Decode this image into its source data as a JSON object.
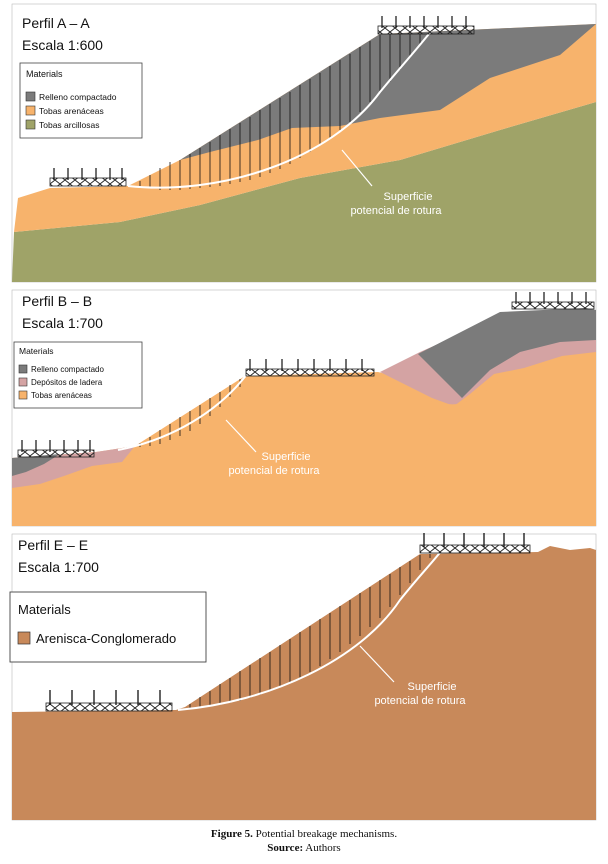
{
  "profiles": [
    {
      "title": "Perfil A – A",
      "scale": "Escala 1:600",
      "legend_title": "Materials",
      "materials": [
        {
          "name": "Relleno compactado",
          "color": "#7b7b7b"
        },
        {
          "name": "Tobas arenáceas",
          "color": "#f7b36c"
        },
        {
          "name": "Tobas arcillosas",
          "color": "#9fa368"
        }
      ],
      "surface_label_1": "Superficie",
      "surface_label_2": "potencial de rotura"
    },
    {
      "title": "Perfil B – B",
      "scale": "Escala 1:700",
      "legend_title": "Materials",
      "materials": [
        {
          "name": "Relleno compactado",
          "color": "#7b7b7b"
        },
        {
          "name": "Depósitos de ladera",
          "color": "#d4a3a3"
        },
        {
          "name": "Tobas arenáceas",
          "color": "#f7b36c"
        }
      ],
      "surface_label_1": "Superficie",
      "surface_label_2": "potencial de rotura"
    },
    {
      "title": "Perfil E – E",
      "scale": "Escala 1:700",
      "legend_title": "Materials",
      "materials": [
        {
          "name": "Arenisca-Conglomerado",
          "color": "#c8895a"
        }
      ],
      "surface_label_1": "Superficie",
      "surface_label_2": "potencial de rotura"
    }
  ],
  "caption": {
    "label": "Figure 5.",
    "text": " Potential breakage mechanisms.",
    "source_label": "Source:",
    "source_text": " Authors"
  }
}
